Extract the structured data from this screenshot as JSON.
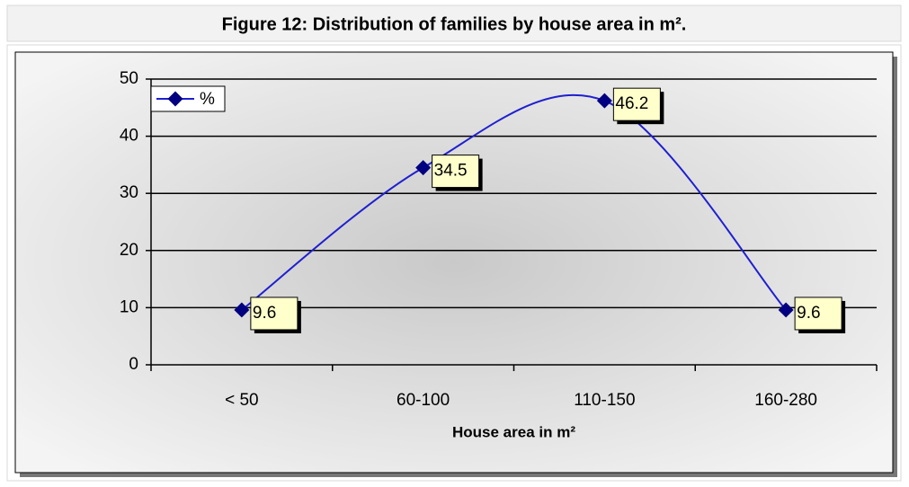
{
  "chart_data": {
    "type": "line",
    "title": "Figure 12: Distribution of families by house area in m².",
    "x_label": "House area in m²",
    "categories": [
      "< 50",
      "60-100",
      "110-150",
      "160-280"
    ],
    "series": [
      {
        "name": "%",
        "color": "#1f1fd0",
        "values": [
          9.6,
          34.5,
          46.2,
          9.6
        ]
      }
    ],
    "ylim": [
      0,
      50
    ],
    "yticks": [
      0,
      10,
      20,
      30,
      40,
      50
    ],
    "grid": true,
    "legend": "top-left",
    "smooth": true
  }
}
